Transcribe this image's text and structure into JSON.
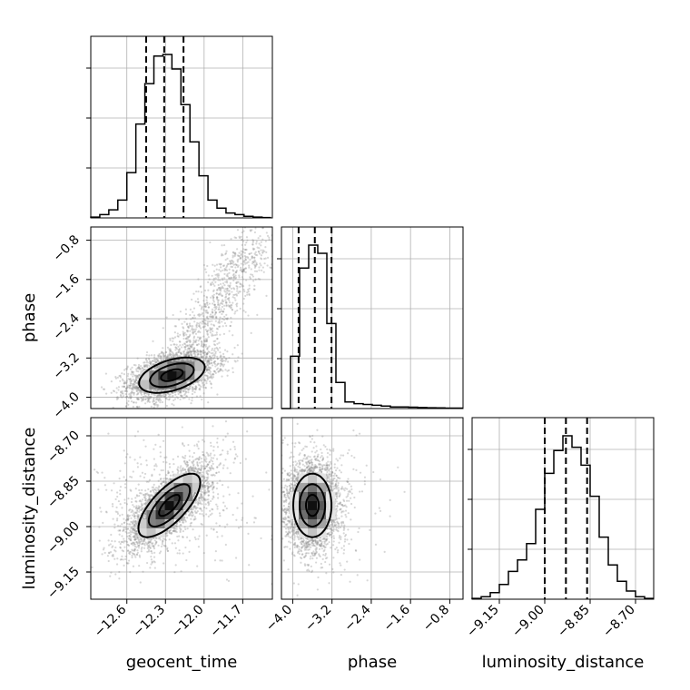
{
  "chart_data": {
    "type": "corner",
    "parameters": [
      "geocent_time",
      "phase",
      "luminosity_distance"
    ],
    "parameter_labels": {
      "geocent_time": "geocent_time",
      "phase": "phase",
      "luminosity_distance": "luminosity_distance"
    },
    "ranges": {
      "geocent_time": [
        -12.88,
        -11.47
      ],
      "phase": [
        -4.23,
        -0.53
      ],
      "luminosity_distance": [
        -9.24,
        -8.64
      ]
    },
    "ticks": {
      "geocent_time": [
        {
          "v": -12.6,
          "label": "−12.6"
        },
        {
          "v": -12.3,
          "label": "−12.3"
        },
        {
          "v": -12.0,
          "label": "−12.0"
        },
        {
          "v": -11.7,
          "label": "−11.7"
        }
      ],
      "phase": [
        {
          "v": -4.0,
          "label": "−4.0"
        },
        {
          "v": -3.2,
          "label": "−3.2"
        },
        {
          "v": -2.4,
          "label": "−2.4"
        },
        {
          "v": -1.6,
          "label": "−1.6"
        },
        {
          "v": -0.8,
          "label": "−0.8"
        }
      ],
      "luminosity_distance": [
        {
          "v": -9.15,
          "label": "−9.15"
        },
        {
          "v": -9.0,
          "label": "−9.00"
        },
        {
          "v": -8.85,
          "label": "−8.85"
        },
        {
          "v": -8.7,
          "label": "−8.70"
        }
      ]
    },
    "histograms": {
      "geocent_time": {
        "edges": [
          -12.88,
          -12.81,
          -12.74,
          -12.67,
          -12.6,
          -12.53,
          -12.46,
          -12.39,
          -12.32,
          -12.25,
          -12.18,
          -12.11,
          -12.04,
          -11.97,
          -11.9,
          -11.83,
          -11.76,
          -11.69,
          -11.62,
          -11.55,
          -11.48
        ],
        "counts": [
          0.5,
          2,
          5,
          11,
          28,
          58,
          83,
          100,
          101,
          92,
          70,
          47,
          26,
          11,
          6,
          3,
          2,
          1,
          0.5,
          0.2
        ],
        "quantiles": [
          -12.45,
          -12.31,
          -12.16
        ]
      },
      "phase": {
        "edges": [
          -4.23,
          -4.045,
          -3.86,
          -3.675,
          -3.49,
          -3.305,
          -3.12,
          -2.935,
          -2.75,
          -2.565,
          -2.38,
          -2.195,
          -2.01,
          -1.825,
          -1.64,
          -1.455,
          -1.27,
          -1.085,
          -0.9,
          -0.715,
          -0.53
        ],
        "counts": [
          0,
          32,
          86,
          100,
          95,
          52,
          16,
          4,
          3,
          2.5,
          2,
          1.5,
          1,
          1,
          0.8,
          0.6,
          0.5,
          0.4,
          0.3,
          0.3
        ],
        "quantiles": [
          -3.88,
          -3.55,
          -3.21
        ]
      },
      "luminosity_distance": {
        "edges": [
          -9.24,
          -9.21,
          -9.18,
          -9.15,
          -9.12,
          -9.09,
          -9.06,
          -9.03,
          -9.0,
          -8.97,
          -8.94,
          -8.91,
          -8.88,
          -8.85,
          -8.82,
          -8.79,
          -8.76,
          -8.73,
          -8.7,
          -8.67,
          -8.64
        ],
        "counts": [
          0.5,
          1.5,
          4,
          9,
          17,
          24,
          34,
          55,
          77,
          91,
          100,
          93,
          82,
          63,
          38,
          21,
          11,
          5,
          1.5,
          0.5
        ],
        "quantiles": [
          -9.0,
          -8.93,
          -8.86
        ]
      }
    },
    "pairs": [
      {
        "x": "geocent_time",
        "y": "phase",
        "mean": [
          -12.25,
          -3.55
        ],
        "sigma": [
          0.17,
          0.24
        ],
        "correlation": 0.45,
        "tail_to": [
          -11.6,
          -0.8
        ],
        "contour_levels": [
          0.5,
          1.0,
          1.5
        ]
      },
      {
        "x": "geocent_time",
        "y": "luminosity_distance",
        "mean": [
          -12.27,
          -8.93
        ],
        "sigma": [
          0.16,
          0.07
        ],
        "correlation": 0.72,
        "contour_levels": [
          0.5,
          1.0,
          1.5
        ]
      },
      {
        "x": "phase",
        "y": "luminosity_distance",
        "mean": [
          -3.6,
          -8.93
        ],
        "sigma": [
          0.26,
          0.07
        ],
        "correlation": 0.0,
        "contour_levels": [
          0.5,
          1.0,
          1.5
        ]
      }
    ]
  }
}
